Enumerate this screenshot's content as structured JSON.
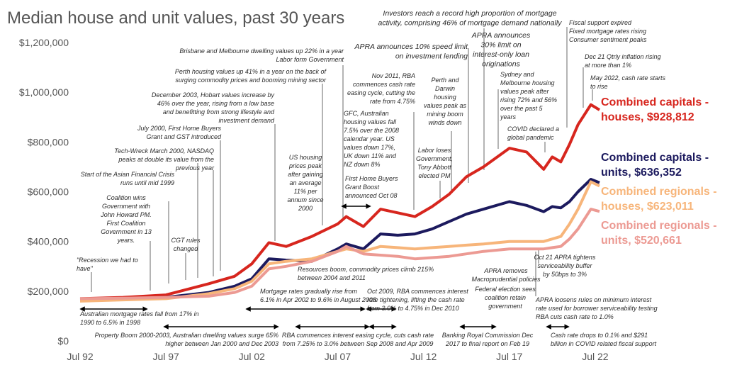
{
  "chart_data": {
    "type": "line",
    "title": "Median house and unit values, past 30 years",
    "x": [
      "1992-07",
      "1995-01",
      "1997-07",
      "2000-01",
      "2001-07",
      "2002-07",
      "2003-07",
      "2004-07",
      "2006-01",
      "2007-07",
      "2008-01",
      "2009-01",
      "2010-01",
      "2011-01",
      "2012-01",
      "2013-01",
      "2014-01",
      "2015-01",
      "2016-01",
      "2017-07",
      "2018-07",
      "2019-07",
      "2020-01",
      "2020-07",
      "2021-01",
      "2021-07",
      "2022-04",
      "2022-10"
    ],
    "xlim": [
      "1992-07",
      "2022-10"
    ],
    "xticks": [
      {
        "value": "1992-07",
        "label": "Jul 92"
      },
      {
        "value": "1997-07",
        "label": "Jul 97"
      },
      {
        "value": "2002-07",
        "label": "Jul 02"
      },
      {
        "value": "2007-07",
        "label": "Jul 07"
      },
      {
        "value": "2012-07",
        "label": "Jul 12"
      },
      {
        "value": "2017-07",
        "label": "Jul 17"
      },
      {
        "value": "2022-07",
        "label": "Jul 22"
      }
    ],
    "ylim": [
      0,
      1200000
    ],
    "yticks": [
      {
        "value": 0,
        "label": "$0"
      },
      {
        "value": 200000,
        "label": "$200,000"
      },
      {
        "value": 400000,
        "label": "$400,000"
      },
      {
        "value": 600000,
        "label": "$600,000"
      },
      {
        "value": 800000,
        "label": "$800,000"
      },
      {
        "value": 1000000,
        "label": "$1,000,000"
      },
      {
        "value": 1200000,
        "label": "$1,200,000"
      }
    ],
    "series": [
      {
        "name": "Combined capitals - houses, $928,812",
        "color": "#d7261e",
        "values": [
          170000,
          175000,
          185000,
          230000,
          260000,
          310000,
          395000,
          380000,
          420000,
          470000,
          500000,
          460000,
          530000,
          515000,
          500000,
          540000,
          590000,
          660000,
          700000,
          775000,
          760000,
          690000,
          740000,
          720000,
          790000,
          870000,
          950000,
          928812
        ]
      },
      {
        "name": "Combined capitals - units, $636,352",
        "color": "#1c1a5e",
        "values": [
          165000,
          170000,
          175000,
          195000,
          220000,
          250000,
          330000,
          325000,
          320000,
          370000,
          390000,
          370000,
          430000,
          425000,
          430000,
          450000,
          480000,
          510000,
          530000,
          560000,
          545000,
          520000,
          540000,
          535000,
          560000,
          600000,
          650000,
          636352
        ]
      },
      {
        "name": "Combined regionals - houses, $623,011",
        "color": "#f7b57a",
        "values": [
          160000,
          165000,
          170000,
          190000,
          210000,
          240000,
          310000,
          320000,
          330000,
          360000,
          370000,
          360000,
          380000,
          375000,
          370000,
          375000,
          380000,
          385000,
          390000,
          400000,
          400000,
          400000,
          410000,
          420000,
          470000,
          530000,
          640000,
          623011
        ]
      },
      {
        "name": "Combined regionals - units, $520,661",
        "color": "#ec9a93",
        "values": [
          170000,
          172000,
          175000,
          180000,
          195000,
          220000,
          290000,
          300000,
          320000,
          360000,
          380000,
          350000,
          345000,
          340000,
          330000,
          335000,
          340000,
          350000,
          360000,
          370000,
          370000,
          370000,
          375000,
          380000,
          410000,
          450000,
          530000,
          520661
        ]
      }
    ],
    "annotations": [
      [
        "Investors reach a record high proportion of mortgage",
        "activity, comprising 46% of mortgage demand nationally"
      ],
      [
        "APRA announces 10% speed limit",
        "on investment lending"
      ],
      [
        "APRA announces",
        "30% limit on",
        "interest-only loan",
        "originations"
      ],
      [
        "Fiscal support expired",
        "Fixed mortgage rates rising",
        "Consumer sentiment peaks"
      ],
      [
        "Dec 21 Qtrly inflation rising",
        "at more than 1%"
      ],
      [
        "May 2022, cash rate starts",
        "to rise"
      ],
      [
        "Brisbane and Melbourne dwelling values up 22% in a year",
        "Labor form Government"
      ],
      [
        "Perth housing values up 41% in a year on the back of",
        "surging commodity prices and booming mining sector"
      ],
      [
        "December 2003, Hobart values increase by",
        "46% over the year, rising from a low base",
        "and benefitting from strong lifestyle and",
        "investment demand"
      ],
      [
        "July 2000, First Home Buyers",
        "Grant and GST introduced"
      ],
      [
        "Tech-Wreck March 2000, NASDAQ",
        "peaks at double its value from the",
        "previous year"
      ],
      [
        "Start of the Asian Financial Crisis",
        "runs until mid 1999"
      ],
      [
        "Coalition wins",
        "Government with",
        "John Howard PM.",
        "First Coalition",
        "Government in 13",
        "years."
      ],
      [
        "\"Recession we had to",
        "have\""
      ],
      [
        "CGT rules",
        "changed"
      ],
      [
        "US housing",
        "prices peak",
        "after gaining",
        "an average",
        "11% per",
        "annum since",
        "2000"
      ],
      [
        "GFC, Australian",
        "housing values fall",
        "7.5% over the 2008",
        "calendar year.  US",
        "values down 17%,",
        "UK down 11% and",
        "NZ down 8%"
      ],
      [
        "First Home Buyers",
        "Grant Boost",
        "announced Oct 08"
      ],
      [
        "Nov 2011, RBA",
        "commences cash rate",
        "easing cycle, cutting the",
        "rate from 4.75%"
      ],
      [
        "Perth and",
        "Darwin",
        "housing",
        "values peak as",
        "mining boom",
        "winds down"
      ],
      [
        "Labor loses",
        "Government,",
        "Tony Abbott",
        "elected PM"
      ],
      [
        "Sydney and",
        "Melbourne housing",
        "values peak after",
        "rising 72% and 56%",
        "over the past 5",
        "years"
      ],
      [
        "COVID declared a",
        "global pandemic"
      ],
      [
        "Resources boom, commodity prices climb 215%",
        "between 2004 and 2011"
      ],
      [
        "Mortgage rates gradually rise from",
        "6.1% in Apr 2002 to 9.6% in August 2008"
      ],
      [
        "Oct 2009, RBA commences interest",
        "rate tightening, lifting the cash rate",
        "from 3.0% to 4.75% in Dec 2010"
      ],
      [
        "Australian mortgage rates fall from 17% in",
        "1990 to 6.5% in 1998"
      ],
      [
        "Property Boom 2000-2003, Australian dwelling values surge 65%",
        "higher between Jan 2000 and Dec 2003"
      ],
      [
        "RBA commences interest easing cycle, cuts cash rate",
        "from 7.25% to 3.0% between Sep 2008 and Apr 2009"
      ],
      [
        "Banking Royal Commission Dec",
        "2017 to final report on Feb 19"
      ],
      [
        "Cash rate drops to 0.1% and  $291",
        "billion in COVID related fiscal support"
      ],
      [
        "APRA removes",
        "Macroprudential policies"
      ],
      [
        "Federal election sees",
        "coalition retain",
        "government"
      ],
      [
        "Oct 21 APRA tightens",
        "serviceability buffer",
        "by 50bps to 3%"
      ],
      [
        "APRA loosens rules on minimum interest",
        "rate used for borrower serviceability testing",
        "RBA cuts cash rate to 1.0%"
      ]
    ]
  }
}
